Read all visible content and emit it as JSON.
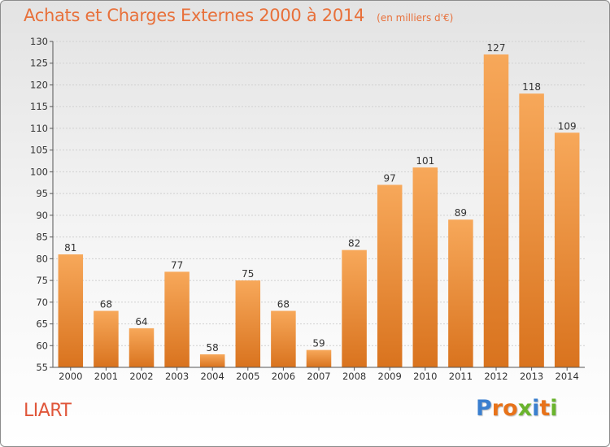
{
  "header": {
    "title": "Achats et Charges Externes 2000 à 2014",
    "unit": "(en milliers d'€)"
  },
  "footer": {
    "commune": "LIART",
    "logo_text": "Proxiti",
    "logo_letters": [
      {
        "char": "P",
        "color": "#3a7fcf"
      },
      {
        "char": "r",
        "color": "#e8731a"
      },
      {
        "char": "o",
        "color": "#e8731a"
      },
      {
        "char": "x",
        "color": "#6ab42d"
      },
      {
        "char": "i",
        "color": "#3a7fcf"
      },
      {
        "char": "t",
        "color": "#e8731a"
      },
      {
        "char": "i",
        "color": "#6ab42d"
      }
    ]
  },
  "chart_data": {
    "type": "bar",
    "title": "Achats et Charges Externes 2000 à 2014",
    "subtitle": "(en milliers d'€)",
    "xlabel": "",
    "ylabel": "",
    "categories": [
      "2000",
      "2001",
      "2002",
      "2003",
      "2004",
      "2005",
      "2006",
      "2007",
      "2008",
      "2009",
      "2010",
      "2011",
      "2012",
      "2013",
      "2014"
    ],
    "values": [
      81,
      68,
      64,
      77,
      58,
      75,
      68,
      59,
      82,
      97,
      101,
      89,
      127,
      118,
      109
    ],
    "ylim": [
      55,
      130
    ],
    "yticks": [
      55,
      60,
      65,
      70,
      75,
      80,
      85,
      90,
      95,
      100,
      105,
      110,
      115,
      120,
      125,
      130
    ],
    "grid": true,
    "legend": "none",
    "colors": {
      "bar_top": "#f7a85a",
      "bar_bottom": "#d9731e",
      "grid": "#d0d0d0",
      "axis_text": "#333333",
      "label_text": "#333333"
    }
  }
}
